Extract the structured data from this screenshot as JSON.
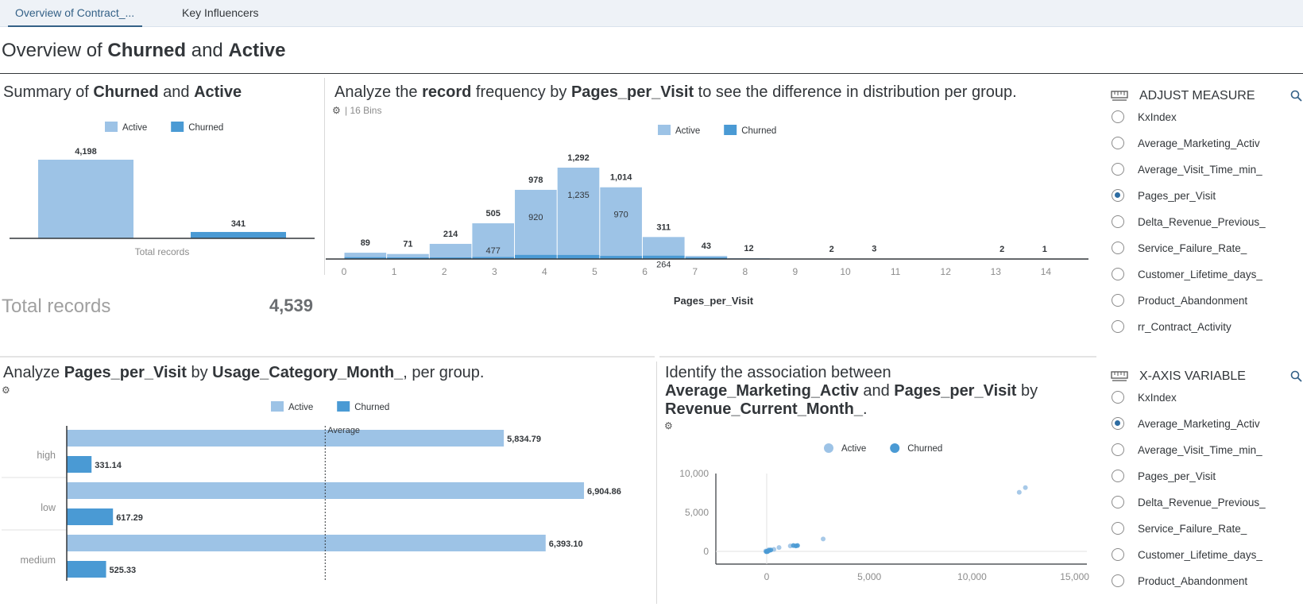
{
  "tabs": [
    {
      "label": "Overview of Contract_..."
    },
    {
      "label": "Key Influencers"
    }
  ],
  "page_title": {
    "prefix": "Overview of ",
    "group1": "Churned",
    "mid": " and ",
    "group2": "Active"
  },
  "summary": {
    "title_prefix": "Summary of ",
    "group1": "Churned",
    "mid": " and ",
    "group2": "Active",
    "total_label": "Total records",
    "total_value": "4,539"
  },
  "histogram": {
    "title_prefix": "Analyze the ",
    "title_bold1": "record",
    "title_mid": " frequency by ",
    "title_bold2": "Pages_per_Visit",
    "title_suffix": " to see the difference in distribution per group.",
    "bins_info": "| 16 Bins"
  },
  "barh": {
    "title_prefix": "Analyze ",
    "title_bold1": "Pages_per_Visit",
    "title_mid": " by ",
    "title_bold2": "Usage_Category_Month_",
    "title_suffix": ", per group.",
    "average_label": "Average"
  },
  "scatter": {
    "title_line1": "Identify the association between",
    "title_bold1": "Average_Marketing_Activ",
    "title_mid": " and ",
    "title_bold2": "Pages_per_Visit",
    "title_mid2": " by",
    "title_bold3": "Revenue_Current_Month_",
    "title_end": "."
  },
  "adjust_measure": {
    "heading": "ADJUST MEASURE",
    "items": [
      {
        "label": "KxIndex",
        "checked": false
      },
      {
        "label": "Average_Marketing_Activ",
        "checked": false
      },
      {
        "label": "Average_Visit_Time_min_",
        "checked": false
      },
      {
        "label": "Pages_per_Visit",
        "checked": true
      },
      {
        "label": "Delta_Revenue_Previous_",
        "checked": false
      },
      {
        "label": "Service_Failure_Rate_",
        "checked": false
      },
      {
        "label": "Customer_Lifetime_days_",
        "checked": false
      },
      {
        "label": "Product_Abandonment",
        "checked": false
      },
      {
        "label": "rr_Contract_Activity",
        "checked": false
      }
    ]
  },
  "x_axis_variable": {
    "heading": "X-AXIS VARIABLE",
    "items": [
      {
        "label": "KxIndex",
        "checked": false
      },
      {
        "label": "Average_Marketing_Activ",
        "checked": true
      },
      {
        "label": "Average_Visit_Time_min_",
        "checked": false
      },
      {
        "label": "Pages_per_Visit",
        "checked": false
      },
      {
        "label": "Delta_Revenue_Previous_",
        "checked": false
      },
      {
        "label": "Service_Failure_Rate_",
        "checked": false
      },
      {
        "label": "Customer_Lifetime_days_",
        "checked": false
      },
      {
        "label": "Product_Abandonment",
        "checked": false
      }
    ]
  },
  "colors": {
    "active": "#9dc3e6",
    "churned": "#4a9ad4",
    "accent": "#346187"
  },
  "chart_data": [
    {
      "id": "summary",
      "type": "bar",
      "categories": [
        "Active",
        "Churned"
      ],
      "series": [
        {
          "name": "Active",
          "values": [
            4198,
            null
          ]
        },
        {
          "name": "Churned",
          "values": [
            null,
            341
          ]
        }
      ],
      "data_labels": [
        "4,198",
        "341"
      ],
      "xlabel": "Total records",
      "legend": [
        "Active",
        "Churned"
      ],
      "legend_position": "top",
      "ylim": [
        0,
        4198
      ]
    },
    {
      "id": "histogram",
      "type": "bar",
      "x_ticks": [
        "0",
        "1",
        "2",
        "3",
        "4",
        "5",
        "6",
        "7",
        "8",
        "9",
        "10",
        "11",
        "12",
        "13",
        "14"
      ],
      "bins": [
        {
          "x0": 0.0,
          "x1": 0.85,
          "total": 89,
          "total_label": "89",
          "churned": 25
        },
        {
          "x0": 0.85,
          "x1": 1.7,
          "total": 71,
          "total_label": "71",
          "churned": 20
        },
        {
          "x0": 1.7,
          "x1": 2.55,
          "total": 214,
          "total_label": "214",
          "churned": 18
        },
        {
          "x0": 2.55,
          "x1": 3.4,
          "total": 505,
          "total_label": "505",
          "active": 477,
          "active_label": "477",
          "churned": 28
        },
        {
          "x0": 3.4,
          "x1": 4.25,
          "total": 978,
          "total_label": "978",
          "active": 920,
          "active_label": "920",
          "churned": 58
        },
        {
          "x0": 4.25,
          "x1": 5.1,
          "total": 1292,
          "total_label": "1,292",
          "active": 1235,
          "active_label": "1,235",
          "churned": 57
        },
        {
          "x0": 5.1,
          "x1": 5.95,
          "total": 1014,
          "total_label": "1,014",
          "active": 970,
          "active_label": "970",
          "churned": 44
        },
        {
          "x0": 5.95,
          "x1": 6.8,
          "total": 311,
          "total_label": "311",
          "active": 264,
          "active_label": "264",
          "churned": 47
        },
        {
          "x0": 6.8,
          "x1": 7.65,
          "total": 43,
          "total_label": "43",
          "churned": 5
        },
        {
          "x0": 7.65,
          "x1": 8.5,
          "total": 12,
          "total_label": "12",
          "churned": 0
        },
        {
          "x0": 9.3,
          "x1": 10.15,
          "total": 2,
          "total_label": "2",
          "churned": 0
        },
        {
          "x0": 10.15,
          "x1": 11.0,
          "total": 3,
          "total_label": "3",
          "churned": 0
        },
        {
          "x0": 12.7,
          "x1": 13.55,
          "total": 2,
          "total_label": "2",
          "churned": 0
        },
        {
          "x0": 13.55,
          "x1": 14.4,
          "total": 1,
          "total_label": "1",
          "churned": 0
        }
      ],
      "xlabel": "Pages_per_Visit",
      "xlim": [
        0,
        14.8
      ],
      "ylim": [
        0,
        1292
      ],
      "legend": [
        "Active",
        "Churned"
      ],
      "legend_position": "top"
    },
    {
      "id": "barh",
      "type": "bar",
      "orientation": "horizontal",
      "categories": [
        "high",
        "low",
        "medium"
      ],
      "series": [
        {
          "name": "Active",
          "values": [
            5834.79,
            6904.86,
            6393.1
          ],
          "labels": [
            "5,834.79",
            "6,904.86",
            "6,393.10"
          ]
        },
        {
          "name": "Churned",
          "values": [
            331.14,
            617.29,
            525.33
          ],
          "labels": [
            "331.14",
            "617.29",
            "525.33"
          ]
        }
      ],
      "average": 3450,
      "average_label": "Average",
      "xlim": [
        0,
        7000
      ],
      "legend": [
        "Active",
        "Churned"
      ],
      "legend_position": "top"
    },
    {
      "id": "scatter",
      "type": "scatter",
      "series": [
        {
          "name": "Active",
          "points": [
            [
              12300,
              7600
            ],
            [
              12600,
              8200
            ],
            [
              2750,
              1600
            ],
            [
              1150,
              700
            ],
            [
              100,
              200
            ],
            [
              350,
              250
            ],
            [
              -50,
              50
            ],
            [
              600,
              500
            ]
          ]
        },
        {
          "name": "Churned",
          "points": [
            [
              1300,
              750
            ],
            [
              1500,
              750
            ],
            [
              1420,
              700
            ],
            [
              0,
              0
            ],
            [
              60,
              60
            ],
            [
              130,
              130
            ],
            [
              -20,
              -40
            ],
            [
              200,
              180
            ],
            [
              40,
              -20
            ]
          ]
        }
      ],
      "x_ticks": [
        "0",
        "5,000",
        "10,000",
        "15,000"
      ],
      "y_ticks": [
        "0",
        "5,000",
        "10,000"
      ],
      "xlim": [
        -2500,
        15500
      ],
      "ylim": [
        -1500,
        10000
      ],
      "legend": [
        "Active",
        "Churned"
      ],
      "legend_position": "top"
    }
  ]
}
